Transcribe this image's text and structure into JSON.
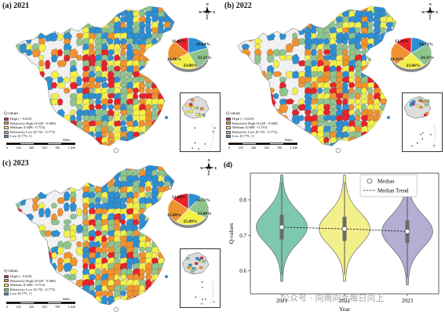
{
  "colors": {
    "high": "#e8222b",
    "relatively_high": "#f0922f",
    "medium": "#f4f04a",
    "relatively_low": "#8fc48e",
    "low": "#2e8fd3",
    "violin_2021": "#7fc8b0",
    "violin_2022": "#f3f08c",
    "violin_2023": "#b3aed2"
  },
  "legend": {
    "title": "Q-values",
    "items": [
      {
        "key": "high",
        "label": "High (< 0.629)"
      },
      {
        "key": "relatively_high",
        "label": "Relatively High [0.629 - 0.688)"
      },
      {
        "key": "medium",
        "label": "Medium [0.688 - 0.733)"
      },
      {
        "key": "relatively_low",
        "label": "Relatively Low [0.733 - 0.775)"
      },
      {
        "key": "low",
        "label": "Low [0.775, 1]"
      }
    ]
  },
  "scalebar": {
    "ticks": [
      "0",
      "130",
      "260",
      "520",
      "780",
      "1,040"
    ],
    "unit": "Miles"
  },
  "compass": {
    "n": "N",
    "s": "S",
    "e": "E",
    "w": "W"
  },
  "panels": [
    {
      "label": "(a) 2021",
      "pie": [
        {
          "key": "low",
          "label": "19.64%",
          "value": 19.64
        },
        {
          "key": "relatively_low",
          "label": "23.21%",
          "value": 23.21
        },
        {
          "key": "medium",
          "label": "23.66%",
          "value": 23.66
        },
        {
          "key": "relatively_high",
          "label": "21.88%",
          "value": 21.88
        },
        {
          "key": "high",
          "label": "11.61%",
          "value": 11.61
        }
      ]
    },
    {
      "label": "(b) 2022",
      "pie": [
        {
          "key": "low",
          "label": "14.73%",
          "value": 14.73
        },
        {
          "key": "relatively_low",
          "label": "24.11%",
          "value": 24.11
        },
        {
          "key": "medium",
          "label": "23.66%",
          "value": 23.66
        },
        {
          "key": "relatively_high",
          "label": "24.11%",
          "value": 24.11
        },
        {
          "key": "high",
          "label": "13.39%",
          "value": 13.39
        }
      ]
    },
    {
      "label": "(c) 2023",
      "pie": [
        {
          "key": "low",
          "label": "10.71%",
          "value": 10.71
        },
        {
          "key": "relatively_low",
          "label": "23.66%",
          "value": 23.66
        },
        {
          "key": "medium",
          "label": "25.89%",
          "value": 25.89
        },
        {
          "key": "relatively_high",
          "label": "25.89%",
          "value": 25.89
        },
        {
          "key": "high",
          "label": "13.84%",
          "value": 13.84
        }
      ]
    }
  ],
  "chart_data": {
    "type": "violin",
    "label": "(d)",
    "categories": [
      "2021",
      "2022",
      "2023"
    ],
    "medians": [
      0.723,
      0.718,
      0.711
    ],
    "quartiles": [
      [
        0.688,
        0.758
      ],
      [
        0.684,
        0.752
      ],
      [
        0.678,
        0.742
      ]
    ],
    "ranges": [
      [
        0.57,
        0.87
      ],
      [
        0.57,
        0.87
      ],
      [
        0.56,
        0.87
      ]
    ],
    "xlabel": "Year",
    "ylabel": "Q-values",
    "ylim": [
      0.535,
      0.875
    ],
    "yticks": [
      "0.6",
      "0.7",
      "0.8"
    ],
    "legend": [
      {
        "kind": "marker",
        "label": "Median"
      },
      {
        "kind": "dashed-line",
        "label": "Median Trend"
      }
    ]
  },
  "watermark": "公众号 · 向南向北每日向上"
}
